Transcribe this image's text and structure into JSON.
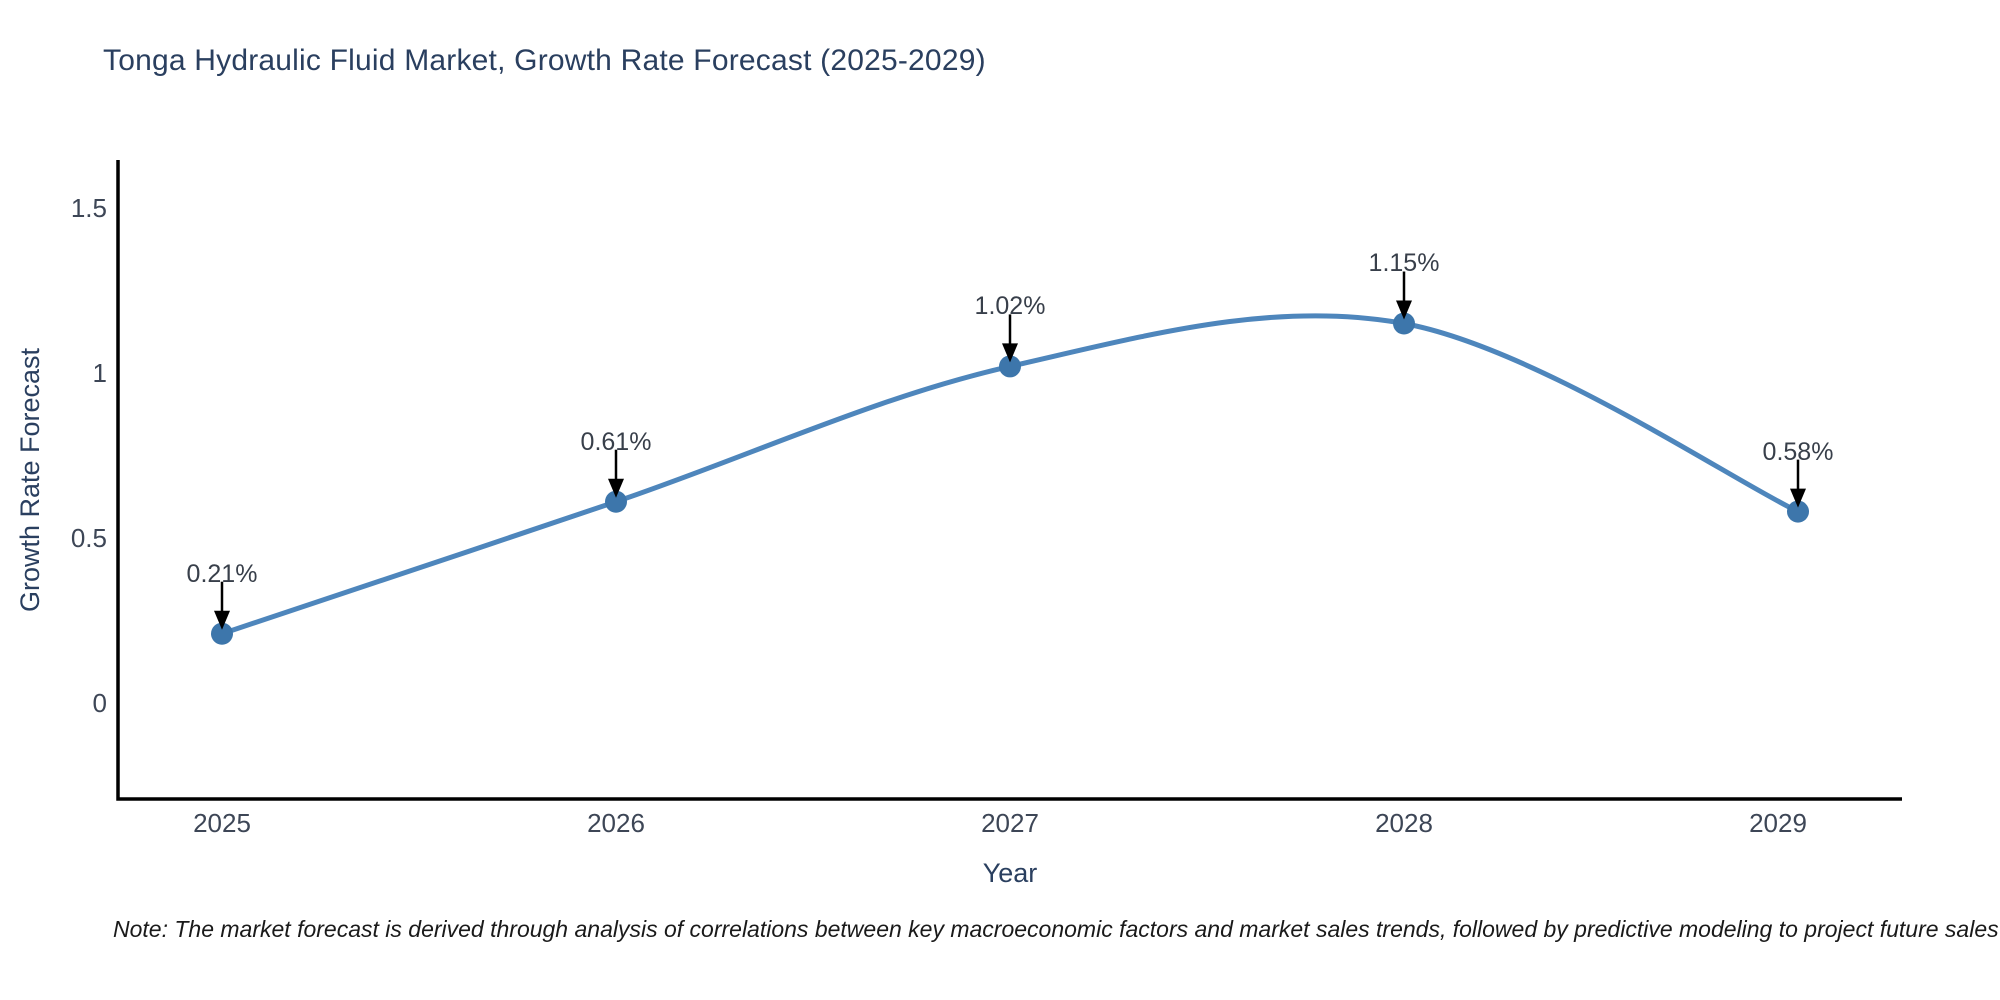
{
  "title": "Tonga Hydraulic Fluid Market, Growth Rate Forecast (2025-2029)",
  "note": "Note: The market forecast is derived through analysis of correlations between key macroeconomic factors and market sales trends, followed by predictive modeling to project future sales",
  "chart_data": {
    "type": "line",
    "title": "Tonga Hydraulic Fluid Market, Growth Rate Forecast (2025-2029)",
    "xlabel": "Year",
    "ylabel": "Growth Rate Forecast",
    "categories": [
      "2025",
      "2026",
      "2027",
      "2028",
      "2029"
    ],
    "values": [
      0.21,
      0.61,
      1.02,
      1.15,
      0.58
    ],
    "point_labels": [
      "0.21%",
      "0.61%",
      "1.02%",
      "1.15%",
      "0.58%"
    ],
    "yticks": [
      0,
      0.5,
      1,
      1.5
    ],
    "ylim": [
      -0.29,
      1.65
    ],
    "line_shape": "spline",
    "markers": true,
    "annotations": "black arrows pointing down from each value label to its data point",
    "grid": false,
    "legend": false,
    "colors": {
      "line": "#4e86bc",
      "marker": "#3d76ab",
      "axis": "#000000",
      "title_text": "#2a3f5f",
      "tick_text": "#3d4656",
      "label_text": "#383f4a",
      "note_text": "#1a1a1a",
      "background": "#ffffff"
    }
  }
}
